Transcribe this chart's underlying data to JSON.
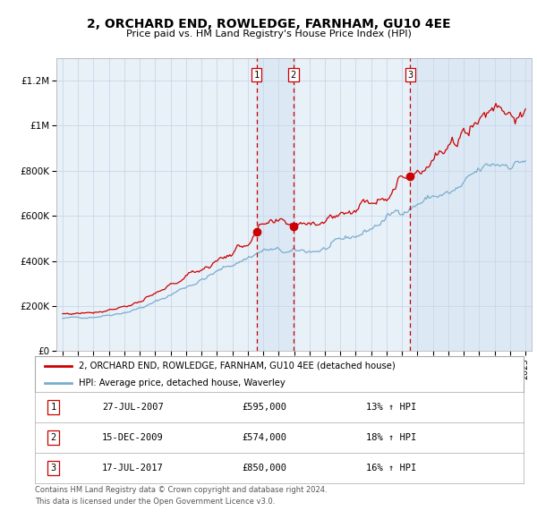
{
  "title": "2, ORCHARD END, ROWLEDGE, FARNHAM, GU10 4EE",
  "subtitle": "Price paid vs. HM Land Registry's House Price Index (HPI)",
  "legend_line1": "2, ORCHARD END, ROWLEDGE, FARNHAM, GU10 4EE (detached house)",
  "legend_line2": "HPI: Average price, detached house, Waverley",
  "footer1": "Contains HM Land Registry data © Crown copyright and database right 2024.",
  "footer2": "This data is licensed under the Open Government Licence v3.0.",
  "transactions": [
    {
      "num": 1,
      "date": "27-JUL-2007",
      "price": "£595,000",
      "hpi_pct": "13%",
      "date_dec": 2007.57
    },
    {
      "num": 2,
      "date": "15-DEC-2009",
      "price": "£574,000",
      "hpi_pct": "18%",
      "date_dec": 2009.96
    },
    {
      "num": 3,
      "date": "17-JUL-2017",
      "price": "£850,000",
      "hpi_pct": "16%",
      "date_dec": 2017.54
    }
  ],
  "red_line_color": "#cc0000",
  "blue_line_color": "#7aadce",
  "shade_color": "#dce9f5",
  "grid_color": "#c8d8e8",
  "bg_color": "#ffffff",
  "plot_bg_color": "#e8f0f8",
  "dashed_line_color": "#cc0000",
  "yticks": [
    0,
    200000,
    400000,
    600000,
    800000,
    1000000,
    1200000
  ],
  "ytick_labels": [
    "£0",
    "£200K",
    "£400K",
    "£600K",
    "£800K",
    "£1M",
    "£1.2M"
  ],
  "year_start": 1995,
  "year_end": 2025,
  "ymax": 1300000,
  "xlim_left": 1994.6,
  "xlim_right": 2025.4
}
